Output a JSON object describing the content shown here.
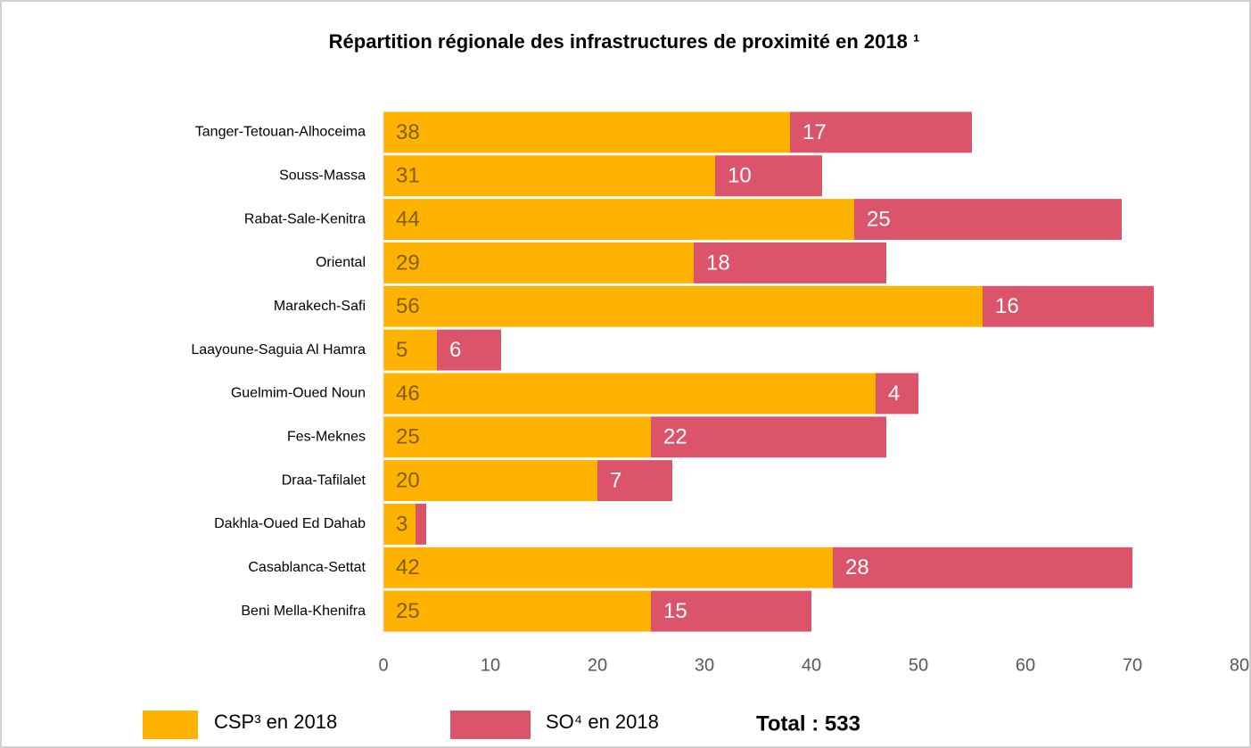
{
  "chart_data": {
    "type": "stacked_barh",
    "title": "Répartition régionale des infrastructures de proximité en 2018 ¹",
    "categories": [
      "Tanger-Tetouan-Alhoceima",
      "Souss-Massa",
      "Rabat-Sale-Kenitra",
      "Oriental",
      "Marakech-Safi",
      "Laayoune-Saguia Al Hamra",
      "Guelmim-Oued Noun",
      "Fes-Meknes",
      "Draa-Tafilalet",
      "Dakhla-Oued Ed Dahab",
      "Casablanca-Settat",
      "Beni Mella-Khenifra"
    ],
    "series": [
      {
        "name": "CSP³ en 2018",
        "color": "#ffb300",
        "label_color": "#7f6000",
        "values": [
          38,
          31,
          44,
          29,
          56,
          5,
          46,
          25,
          20,
          3,
          42,
          25
        ]
      },
      {
        "name": "SO⁴ en 2018",
        "color": "#dc546a",
        "label_color": "#ffffff",
        "values": [
          17,
          10,
          25,
          18,
          16,
          6,
          4,
          22,
          7,
          1,
          28,
          15
        ]
      }
    ],
    "xlim": [
      0,
      80
    ],
    "xticks": [
      0,
      10,
      20,
      30,
      40,
      50,
      60,
      70,
      80
    ],
    "annotation": "Total : 533"
  }
}
